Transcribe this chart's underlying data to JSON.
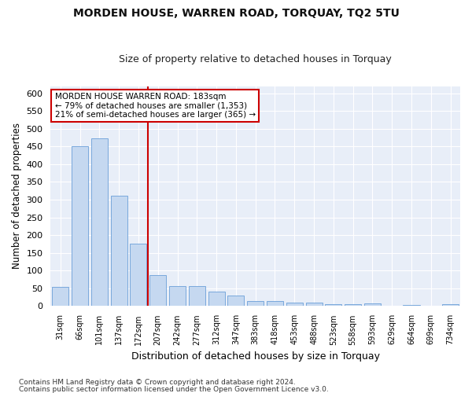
{
  "title": "MORDEN HOUSE, WARREN ROAD, TORQUAY, TQ2 5TU",
  "subtitle": "Size of property relative to detached houses in Torquay",
  "xlabel": "Distribution of detached houses by size in Torquay",
  "ylabel": "Number of detached properties",
  "categories": [
    "31sqm",
    "66sqm",
    "101sqm",
    "137sqm",
    "172sqm",
    "207sqm",
    "242sqm",
    "277sqm",
    "312sqm",
    "347sqm",
    "383sqm",
    "418sqm",
    "453sqm",
    "488sqm",
    "523sqm",
    "558sqm",
    "593sqm",
    "629sqm",
    "664sqm",
    "699sqm",
    "734sqm"
  ],
  "values": [
    55,
    450,
    472,
    312,
    175,
    88,
    57,
    57,
    41,
    30,
    15,
    15,
    10,
    10,
    6,
    6,
    8,
    0,
    4,
    0,
    5
  ],
  "bar_color": "#c5d8f0",
  "bar_edge_color": "#6a9fd8",
  "vline_color": "#cc0000",
  "vline_index": 4.5,
  "annotation_title": "MORDEN HOUSE WARREN ROAD: 183sqm",
  "annotation_line1": "← 79% of detached houses are smaller (1,353)",
  "annotation_line2": "21% of semi-detached houses are larger (365) →",
  "annotation_box_facecolor": "#ffffff",
  "annotation_border_color": "#cc0000",
  "ylim": [
    0,
    620
  ],
  "yticks": [
    0,
    50,
    100,
    150,
    200,
    250,
    300,
    350,
    400,
    450,
    500,
    550,
    600
  ],
  "footer1": "Contains HM Land Registry data © Crown copyright and database right 2024.",
  "footer2": "Contains public sector information licensed under the Open Government Licence v3.0.",
  "bg_color": "#ffffff",
  "plot_bg_color": "#e8eef8",
  "grid_color": "#ffffff",
  "title_fontsize": 10,
  "subtitle_fontsize": 9
}
